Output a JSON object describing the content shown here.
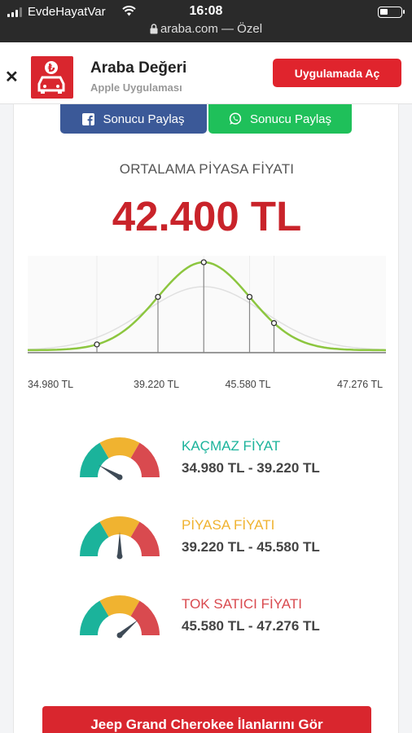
{
  "status_bar": {
    "carrier": "EvdeHayatVar",
    "time": "16:08",
    "url": "araba.com",
    "url_suffix": "— Özel"
  },
  "app_banner": {
    "name": "Araba Değeri",
    "subtitle": "Apple Uygulaması",
    "open_label": "Uygulamada Aç"
  },
  "share": {
    "facebook_label": "Sonucu Paylaş",
    "whatsapp_label": "Sonucu Paylaş"
  },
  "price": {
    "label": "ORTALAMA PİYASA FİYATI",
    "value": "42.400 TL"
  },
  "chart_data": {
    "type": "area",
    "x": [
      34980,
      39220,
      42400,
      45580,
      47276
    ],
    "tick_labels": [
      "34.980 TL",
      "39.220 TL",
      "45.580 TL",
      "47.276 TL"
    ],
    "marked_points": [
      34980,
      39220,
      42400,
      45580,
      47276
    ],
    "grid": true
  },
  "gauges": [
    {
      "title": "KAÇMAZ FİYAT",
      "range": "34.980 TL - 39.220 TL",
      "color": "#1bb39b",
      "needle": "low"
    },
    {
      "title": "PİYASA FİYATI",
      "range": "39.220 TL - 45.580 TL",
      "color": "#f0b330",
      "needle": "mid"
    },
    {
      "title": "TOK SATICI FİYATI",
      "range": "45.580 TL - 47.276 TL",
      "color": "#d94a4f",
      "needle": "high"
    }
  ],
  "cta": {
    "label": "Jeep Grand Cherokee İlanlarını Gör"
  },
  "colors": {
    "brand_red": "#d9262e",
    "facebook": "#3b5998",
    "whatsapp": "#1fc05a",
    "curve": "#8cc63f"
  }
}
